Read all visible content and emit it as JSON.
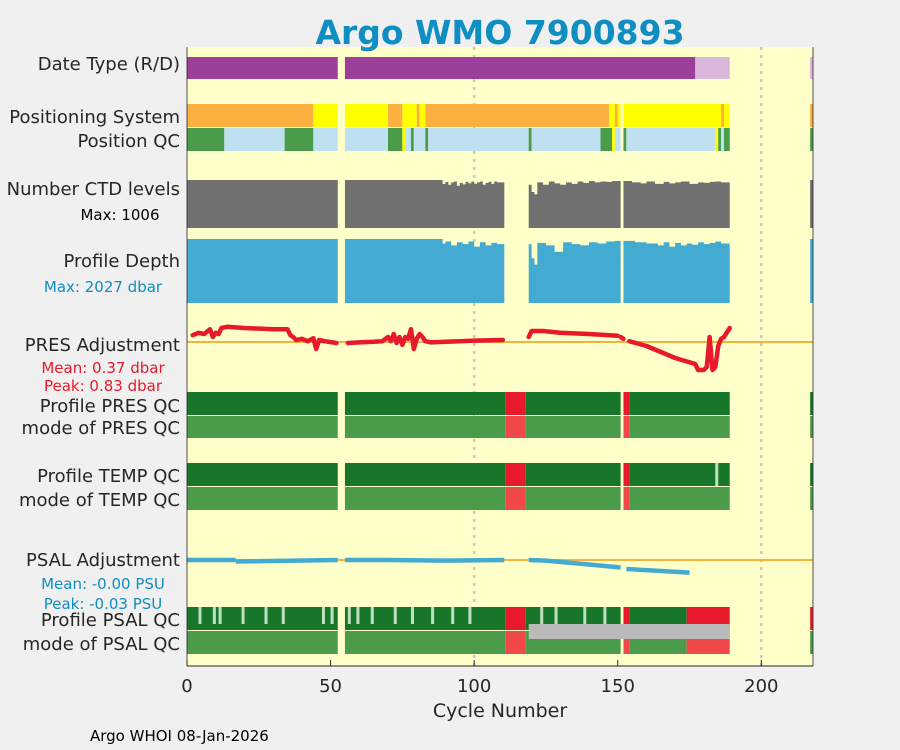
{
  "chart_data": {
    "type": "timeline",
    "title": "Argo WMO 7900893",
    "xlabel": "Cycle Number",
    "xlim": [
      0,
      218
    ],
    "xticks": [
      0,
      50,
      100,
      150,
      200
    ],
    "footer": "Argo WHOI 08-Jan-2026",
    "gaps": [
      [
        52.5,
        55
      ],
      [
        110.5,
        119
      ],
      [
        151,
        152
      ],
      [
        189,
        218
      ]
    ],
    "rows": [
      {
        "id": "date-type",
        "label": "Date Type (R/D)",
        "segments": [
          [
            0,
            52.5,
            "#9b3f9b"
          ],
          [
            55,
            177,
            "#9b3f9b"
          ],
          [
            177,
            189,
            "#dbb6db"
          ],
          [
            217,
            218,
            "#dbb6db"
          ]
        ]
      },
      {
        "id": "positioning-system",
        "label": "Positioning System",
        "segments": [
          [
            0,
            44,
            "#fbb040"
          ],
          [
            44,
            52.5,
            "#ffff00"
          ],
          [
            55,
            70,
            "#ffff00"
          ],
          [
            70,
            75,
            "#fbb040"
          ],
          [
            75,
            80,
            "#ffff00"
          ],
          [
            80,
            81,
            "#fbb040"
          ],
          [
            81,
            83,
            "#ffff00"
          ],
          [
            83,
            147,
            "#fbb040"
          ],
          [
            147,
            149,
            "#ffff00"
          ],
          [
            149,
            150,
            "#fbb040"
          ],
          [
            150,
            151,
            "#ffff00"
          ],
          [
            152,
            186,
            "#ffff00"
          ],
          [
            186,
            187,
            "#fbb040"
          ],
          [
            187,
            189,
            "#ffff00"
          ],
          [
            217,
            218,
            "#fbb040"
          ]
        ]
      },
      {
        "id": "position-qc",
        "label": "Position QC",
        "segments": [
          [
            0,
            13,
            "#4a9b4a"
          ],
          [
            13,
            34,
            "#bfe0ef"
          ],
          [
            34,
            44,
            "#4a9b4a"
          ],
          [
            44,
            52.5,
            "#bfe0ef"
          ],
          [
            55,
            70,
            "#bfe0ef"
          ],
          [
            70,
            75,
            "#4a9b4a"
          ],
          [
            75,
            76,
            "#ffff00"
          ],
          [
            76,
            78,
            "#bfe0ef"
          ],
          [
            78,
            79,
            "#4a9b4a"
          ],
          [
            79,
            83,
            "#bfe0ef"
          ],
          [
            83,
            84,
            "#4a9b4a"
          ],
          [
            84,
            119,
            "#bfe0ef"
          ],
          [
            119,
            120,
            "#4a9b4a"
          ],
          [
            120,
            144,
            "#bfe0ef"
          ],
          [
            144,
            148,
            "#4a9b4a"
          ],
          [
            148,
            149,
            "#ffff00"
          ],
          [
            149,
            151,
            "#bfe0ef"
          ],
          [
            152,
            153,
            "#4a9b4a"
          ],
          [
            153,
            184,
            "#bfe0ef"
          ],
          [
            184,
            185,
            "#ffff00"
          ],
          [
            185,
            186,
            "#4a9b4a"
          ],
          [
            186,
            187,
            "#bfe0ef"
          ],
          [
            187,
            189,
            "#4a9b4a"
          ],
          [
            217,
            218,
            "#4a9b4a"
          ]
        ]
      },
      {
        "id": "ctd-levels",
        "label": "Number CTD levels",
        "sublabel": "Max: 1006",
        "segments": [
          [
            0,
            52.5,
            "#707070"
          ],
          [
            55,
            110.5,
            "#707070"
          ],
          [
            119,
            151,
            "#707070"
          ],
          [
            152,
            189,
            "#707070"
          ],
          [
            217,
            218,
            "#707070"
          ]
        ]
      },
      {
        "id": "profile-depth",
        "label": "Profile Depth",
        "sublabel": "Max: 2027 dbar",
        "segments": [
          [
            0,
            52.5,
            "#43abd2"
          ],
          [
            55,
            110.5,
            "#43abd2"
          ],
          [
            119,
            151,
            "#43abd2"
          ],
          [
            152,
            189,
            "#43abd2"
          ],
          [
            217,
            218,
            "#43abd2"
          ]
        ]
      },
      {
        "id": "pres-adjustment",
        "label": "PRES Adjustment",
        "sublabel": "Mean: 0.37 dbar",
        "sublabel2": "Peak: 0.83 dbar",
        "segments": []
      },
      {
        "id": "profile-pres-qc",
        "label": "Profile PRES QC",
        "segments": [
          [
            0,
            52.5,
            "#17762a"
          ],
          [
            55,
            111,
            "#17762a"
          ],
          [
            111,
            118,
            "#e8192a"
          ],
          [
            118,
            151,
            "#17762a"
          ],
          [
            152,
            154,
            "#e8192a"
          ],
          [
            154,
            189,
            "#17762a"
          ],
          [
            217,
            218,
            "#17762a"
          ]
        ]
      },
      {
        "id": "mode-pres-qc",
        "label": "mode of PRES QC",
        "segments": [
          [
            0,
            52.5,
            "#4a9b4a"
          ],
          [
            55,
            111,
            "#4a9b4a"
          ],
          [
            111,
            118,
            "#f04848"
          ],
          [
            118,
            151,
            "#4a9b4a"
          ],
          [
            152,
            154,
            "#f04848"
          ],
          [
            154,
            189,
            "#4a9b4a"
          ],
          [
            217,
            218,
            "#4a9b4a"
          ]
        ]
      },
      {
        "id": "profile-temp-qc",
        "label": "Profile TEMP QC",
        "segments": [
          [
            0,
            52.5,
            "#17762a"
          ],
          [
            55,
            111,
            "#17762a"
          ],
          [
            111,
            118,
            "#e8192a"
          ],
          [
            118,
            151,
            "#17762a"
          ],
          [
            152,
            154,
            "#e8192a"
          ],
          [
            154,
            184,
            "#17762a"
          ],
          [
            184,
            185,
            "#bfe0bf"
          ],
          [
            185,
            189,
            "#17762a"
          ],
          [
            217,
            218,
            "#17762a"
          ]
        ]
      },
      {
        "id": "mode-temp-qc",
        "label": "mode of TEMP QC",
        "segments": [
          [
            0,
            52.5,
            "#4a9b4a"
          ],
          [
            55,
            111,
            "#4a9b4a"
          ],
          [
            111,
            118,
            "#f04848"
          ],
          [
            118,
            151,
            "#4a9b4a"
          ],
          [
            152,
            154,
            "#f04848"
          ],
          [
            154,
            189,
            "#4a9b4a"
          ],
          [
            217,
            218,
            "#4a9b4a"
          ]
        ]
      },
      {
        "id": "psal-adjustment",
        "label": "PSAL Adjustment",
        "sublabel": "Mean: -0.00 PSU",
        "sublabel2": "Peak: -0.03 PSU",
        "segments": []
      },
      {
        "id": "profile-psal-qc",
        "label": "Profile PSAL QC",
        "segments": [
          [
            0,
            52.5,
            "#17762a"
          ],
          [
            55,
            111,
            "#17762a"
          ],
          [
            111,
            118,
            "#e8192a"
          ],
          [
            118,
            151,
            "#17762a"
          ],
          [
            152,
            154,
            "#e8192a"
          ],
          [
            154,
            174,
            "#17762a"
          ],
          [
            174,
            189,
            "#e8192a"
          ],
          [
            217,
            218,
            "#e8192a"
          ]
        ]
      },
      {
        "id": "mode-psal-qc",
        "label": "mode of PSAL QC",
        "segments": [
          [
            0,
            52.5,
            "#4a9b4a"
          ],
          [
            55,
            111,
            "#4a9b4a"
          ],
          [
            111,
            118,
            "#f04848"
          ],
          [
            118,
            151,
            "#4a9b4a"
          ],
          [
            152,
            154,
            "#f04848"
          ],
          [
            154,
            174,
            "#4a9b4a"
          ],
          [
            174,
            189,
            "#f04848"
          ],
          [
            217,
            218,
            "#4a9b4a"
          ]
        ]
      }
    ],
    "psal_qc_ticks": [
      4,
      9,
      11,
      19,
      27,
      33,
      47,
      50,
      56,
      59,
      64,
      72,
      78,
      85,
      92,
      98,
      123,
      128,
      138,
      145
    ],
    "psal_gray_band": [
      119,
      189
    ],
    "ctd_levels": [
      {
        "x": [
          0,
          52.5
        ],
        "v": [
          1,
          1
        ]
      },
      {
        "x": [
          55,
          88,
          89,
          90,
          91,
          92,
          93,
          94,
          95,
          96,
          97,
          98,
          99,
          100,
          101,
          102,
          103,
          104,
          105,
          106,
          107,
          108,
          110.5
        ],
        "v": [
          1,
          1,
          0.92,
          0.96,
          0.9,
          0.95,
          0.97,
          0.88,
          0.94,
          0.91,
          0.96,
          0.93,
          0.97,
          0.92,
          0.95,
          0.97,
          0.9,
          0.94,
          0.96,
          0.92,
          0.97,
          0.95,
          0.94
        ]
      },
      {
        "x": [
          119,
          120,
          121,
          122,
          124,
          126,
          128,
          130,
          132,
          134,
          136,
          138,
          140,
          142,
          144,
          146,
          148,
          151
        ],
        "v": [
          0.9,
          0.75,
          0.7,
          0.95,
          0.9,
          0.97,
          0.93,
          0.9,
          0.95,
          0.92,
          0.97,
          0.94,
          0.98,
          0.95,
          0.97,
          0.96,
          0.98,
          0.97
        ]
      },
      {
        "x": [
          152,
          155,
          158,
          160,
          163,
          166,
          168,
          170,
          172,
          175,
          178,
          180,
          182,
          184,
          186,
          189
        ],
        "v": [
          0.98,
          0.95,
          0.93,
          0.97,
          0.92,
          0.96,
          0.93,
          0.95,
          0.97,
          0.92,
          0.95,
          0.94,
          0.96,
          0.97,
          0.95,
          0.98
        ]
      }
    ],
    "profile_depth": [
      {
        "x": [
          0,
          52.5
        ],
        "v": [
          1,
          1
        ]
      },
      {
        "x": [
          55,
          88,
          89,
          90,
          92,
          94,
          96,
          98,
          100,
          102,
          104,
          106,
          108,
          110.5
        ],
        "v": [
          1,
          1,
          0.93,
          0.96,
          0.9,
          0.95,
          0.92,
          0.96,
          0.88,
          0.95,
          0.9,
          0.94,
          0.92,
          0.96
        ]
      },
      {
        "x": [
          119,
          120,
          121,
          122,
          125,
          128,
          131,
          134,
          137,
          140,
          143,
          146,
          149,
          151
        ],
        "v": [
          0.92,
          0.7,
          0.6,
          0.94,
          0.9,
          0.8,
          0.95,
          0.92,
          0.9,
          0.95,
          0.93,
          0.96,
          0.97,
          0.95
        ]
      },
      {
        "x": [
          152,
          156,
          160,
          164,
          166,
          168,
          170,
          172,
          174,
          176,
          178,
          180,
          182,
          184,
          186,
          189
        ],
        "v": [
          0.97,
          0.95,
          0.93,
          0.9,
          0.95,
          0.88,
          0.94,
          0.9,
          0.93,
          0.91,
          0.95,
          0.92,
          0.94,
          0.96,
          0.93,
          0.97
        ]
      }
    ],
    "pres_adjustment": [
      {
        "x": [
          2,
          4,
          6,
          8,
          9,
          10,
          11,
          12,
          14,
          20,
          30,
          35,
          36,
          37,
          38,
          40,
          42,
          44,
          45,
          46,
          48,
          52
        ],
        "y": [
          0.58,
          0.62,
          0.6,
          0.68,
          0.55,
          0.62,
          0.6,
          0.7,
          0.72,
          0.7,
          0.68,
          0.68,
          0.58,
          0.55,
          0.5,
          0.52,
          0.48,
          0.53,
          0.35,
          0.5,
          0.48,
          0.45
        ]
      },
      {
        "x": [
          56,
          60,
          65,
          68,
          70,
          71,
          72,
          73,
          74,
          75,
          76,
          77,
          78,
          79,
          80,
          81,
          82,
          83,
          85,
          90,
          95,
          100,
          110
        ]
      },
      {
        "x": [
          119,
          120,
          124,
          130,
          140,
          150
        ]
      },
      {
        "x": [
          151,
          152
        ]
      },
      {
        "x": [
          154,
          160,
          170,
          177,
          178,
          180,
          181,
          182,
          183,
          184,
          185,
          186,
          187,
          189
        ]
      }
    ],
    "pres_adjustment_y": [
      [
        0.45,
        0.46,
        0.47,
        0.48,
        0.55,
        0.48,
        0.6,
        0.45,
        0.55,
        0.42,
        0.55,
        0.52,
        0.68,
        0.35,
        0.52,
        0.6,
        0.55,
        0.48,
        0.46,
        0.47,
        0.48,
        0.49,
        0.5
      ],
      [
        0.55,
        0.65,
        0.65,
        0.62,
        0.6,
        0.57
      ],
      [
        0.55,
        0.52
      ],
      [
        0.48,
        0.4,
        0.2,
        0.1,
        0.0,
        0.0,
        0.05,
        0.55,
        0.0,
        0.05,
        0.4,
        0.52,
        0.55,
        0.7
      ]
    ],
    "pres_zero_level": 0.2,
    "psal_adjustment": [
      {
        "x": [
          0,
          17
        ],
        "y": [
          0.5,
          0.5
        ]
      },
      {
        "x": [
          17,
          52.5
        ],
        "y": [
          0.45,
          0.5
        ]
      },
      {
        "x": [
          55,
          70,
          90,
          110.5
        ],
        "y": [
          0.5,
          0.5,
          0.48,
          0.5
        ]
      },
      {
        "x": [
          119,
          125,
          140,
          151
        ],
        "y": [
          0.5,
          0.48,
          0.35,
          0.25
        ]
      },
      {
        "x": [
          153,
          175
        ],
        "y": [
          0.2,
          0.08
        ]
      }
    ],
    "psal_zero_level": 0.5,
    "colors": {
      "title": "#0f8ec1",
      "plot_bg": "#ffffc9",
      "pres_line": "#e8192a",
      "psal_line": "#43abd2",
      "zero_line": "#f3b340",
      "sublabel_blue": "#0f8ec1",
      "sublabel_red": "#e8192a"
    }
  }
}
